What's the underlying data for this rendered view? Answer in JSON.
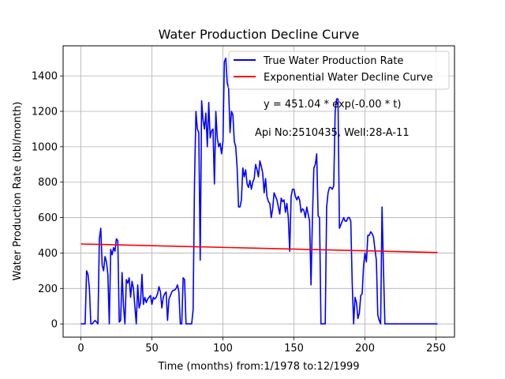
{
  "chart_data": {
    "type": "line",
    "title": "Water Production Decline Curve",
    "xlabel": "Time (months) from:1/1978 to:12/1999",
    "ylabel": "Water Production Rate (bbl/month)",
    "xlim": [
      -12.5,
      263
    ],
    "ylim": [
      -75,
      1570
    ],
    "xticks": [
      0,
      50,
      100,
      150,
      200,
      250
    ],
    "yticks": [
      0,
      200,
      400,
      600,
      800,
      1000,
      1200,
      1400
    ],
    "grid": true,
    "legend_position": "top-right",
    "series": [
      {
        "name": "True Water Production Rate",
        "color": "#0000ff",
        "points": [
          [
            0,
            0
          ],
          [
            1,
            0
          ],
          [
            2,
            0
          ],
          [
            3,
            0
          ],
          [
            4,
            300
          ],
          [
            5,
            280
          ],
          [
            6,
            200
          ],
          [
            7,
            0
          ],
          [
            8,
            0
          ],
          [
            9,
            10
          ],
          [
            10,
            20
          ],
          [
            11,
            10
          ],
          [
            12,
            0
          ],
          [
            13,
            480
          ],
          [
            14,
            540
          ],
          [
            15,
            330
          ],
          [
            16,
            300
          ],
          [
            17,
            380
          ],
          [
            18,
            350
          ],
          [
            19,
            280
          ],
          [
            20,
            0
          ],
          [
            21,
            420
          ],
          [
            22,
            390
          ],
          [
            23,
            430
          ],
          [
            24,
            410
          ],
          [
            25,
            480
          ],
          [
            26,
            470
          ],
          [
            27,
            10
          ],
          [
            28,
            20
          ],
          [
            29,
            290
          ],
          [
            30,
            100
          ],
          [
            31,
            0
          ],
          [
            32,
            250
          ],
          [
            33,
            230
          ],
          [
            34,
            260
          ],
          [
            35,
            150
          ],
          [
            36,
            240
          ],
          [
            37,
            200
          ],
          [
            38,
            100
          ],
          [
            39,
            0
          ],
          [
            40,
            220
          ],
          [
            41,
            90
          ],
          [
            42,
            120
          ],
          [
            43,
            280
          ],
          [
            44,
            110
          ],
          [
            45,
            150
          ],
          [
            46,
            120
          ],
          [
            47,
            140
          ],
          [
            48,
            150
          ],
          [
            49,
            160
          ],
          [
            50,
            110
          ],
          [
            51,
            150
          ],
          [
            52,
            140
          ],
          [
            53,
            150
          ],
          [
            54,
            170
          ],
          [
            55,
            210
          ],
          [
            56,
            180
          ],
          [
            57,
            90
          ],
          [
            58,
            150
          ],
          [
            59,
            170
          ],
          [
            60,
            180
          ],
          [
            61,
            20
          ],
          [
            62,
            140
          ],
          [
            63,
            160
          ],
          [
            64,
            180
          ],
          [
            65,
            190
          ],
          [
            66,
            190
          ],
          [
            67,
            200
          ],
          [
            68,
            220
          ],
          [
            69,
            180
          ],
          [
            70,
            0
          ],
          [
            71,
            0
          ],
          [
            72,
            260
          ],
          [
            73,
            250
          ],
          [
            74,
            0
          ],
          [
            75,
            0
          ],
          [
            76,
            0
          ],
          [
            77,
            0
          ],
          [
            78,
            0
          ],
          [
            79,
            80
          ],
          [
            80,
            800
          ],
          [
            81,
            1200
          ],
          [
            82,
            1100
          ],
          [
            83,
            1080
          ],
          [
            84,
            360
          ],
          [
            85,
            1260
          ],
          [
            86,
            1150
          ],
          [
            87,
            1100
          ],
          [
            88,
            1190
          ],
          [
            89,
            1000
          ],
          [
            90,
            1250
          ],
          [
            91,
            1050
          ],
          [
            92,
            1090
          ],
          [
            93,
            1100
          ],
          [
            94,
            790
          ],
          [
            95,
            1200
          ],
          [
            96,
            1050
          ],
          [
            97,
            1000
          ],
          [
            98,
            1020
          ],
          [
            99,
            960
          ],
          [
            100,
            1030
          ],
          [
            101,
            1480
          ],
          [
            102,
            1500
          ],
          [
            103,
            1360
          ],
          [
            104,
            1330
          ],
          [
            105,
            1080
          ],
          [
            106,
            1200
          ],
          [
            107,
            1180
          ],
          [
            108,
            1030
          ],
          [
            109,
            1000
          ],
          [
            110,
            880
          ],
          [
            111,
            660
          ],
          [
            112,
            660
          ],
          [
            113,
            700
          ],
          [
            114,
            880
          ],
          [
            115,
            830
          ],
          [
            116,
            870
          ],
          [
            117,
            790
          ],
          [
            118,
            770
          ],
          [
            119,
            810
          ],
          [
            120,
            760
          ],
          [
            121,
            800
          ],
          [
            122,
            820
          ],
          [
            123,
            900
          ],
          [
            124,
            870
          ],
          [
            125,
            830
          ],
          [
            126,
            920
          ],
          [
            127,
            890
          ],
          [
            128,
            850
          ],
          [
            129,
            740
          ],
          [
            130,
            820
          ],
          [
            131,
            720
          ],
          [
            132,
            690
          ],
          [
            133,
            680
          ],
          [
            134,
            600
          ],
          [
            135,
            650
          ],
          [
            136,
            740
          ],
          [
            137,
            720
          ],
          [
            138,
            700
          ],
          [
            139,
            660
          ],
          [
            140,
            620
          ],
          [
            141,
            710
          ],
          [
            142,
            690
          ],
          [
            143,
            700
          ],
          [
            144,
            630
          ],
          [
            145,
            680
          ],
          [
            146,
            600
          ],
          [
            147,
            410
          ],
          [
            148,
            720
          ],
          [
            149,
            760
          ],
          [
            150,
            760
          ],
          [
            151,
            720
          ],
          [
            152,
            700
          ],
          [
            153,
            720
          ],
          [
            154,
            700
          ],
          [
            155,
            630
          ],
          [
            156,
            650
          ],
          [
            157,
            640
          ],
          [
            158,
            600
          ],
          [
            159,
            660
          ],
          [
            160,
            620
          ],
          [
            161,
            580
          ],
          [
            162,
            220
          ],
          [
            163,
            600
          ],
          [
            164,
            880
          ],
          [
            165,
            900
          ],
          [
            166,
            960
          ],
          [
            167,
            610
          ],
          [
            168,
            600
          ],
          [
            169,
            0
          ],
          [
            170,
            0
          ],
          [
            171,
            0
          ],
          [
            172,
            0
          ],
          [
            173,
            660
          ],
          [
            174,
            740
          ],
          [
            175,
            770
          ],
          [
            176,
            770
          ],
          [
            177,
            760
          ],
          [
            178,
            780
          ],
          [
            179,
            1200
          ],
          [
            180,
            1270
          ],
          [
            181,
            1270
          ],
          [
            182,
            540
          ],
          [
            183,
            560
          ],
          [
            184,
            580
          ],
          [
            185,
            600
          ],
          [
            186,
            580
          ],
          [
            187,
            580
          ],
          [
            188,
            600
          ],
          [
            189,
            600
          ],
          [
            190,
            580
          ],
          [
            191,
            230
          ],
          [
            192,
            0
          ],
          [
            193,
            150
          ],
          [
            194,
            120
          ],
          [
            195,
            30
          ],
          [
            196,
            60
          ],
          [
            197,
            160
          ],
          [
            198,
            170
          ],
          [
            199,
            330
          ],
          [
            200,
            400
          ],
          [
            201,
            350
          ],
          [
            202,
            500
          ],
          [
            203,
            500
          ],
          [
            204,
            520
          ],
          [
            205,
            510
          ],
          [
            206,
            490
          ],
          [
            207,
            420
          ],
          [
            208,
            360
          ],
          [
            209,
            50
          ],
          [
            210,
            20
          ],
          [
            211,
            0
          ],
          [
            212,
            660
          ],
          [
            213,
            310
          ],
          [
            214,
            0
          ],
          [
            215,
            0
          ],
          [
            216,
            0
          ],
          [
            220,
            0
          ],
          [
            230,
            0
          ],
          [
            240,
            0
          ],
          [
            250,
            0
          ],
          [
            251,
            0
          ]
        ]
      },
      {
        "name": "Exponential Water Decline Curve",
        "color": "#ff0000",
        "points": [
          [
            0,
            451.04
          ],
          [
            251,
            403
          ]
        ]
      }
    ],
    "annotations": {
      "equation": "y = 451.04 * exp(-0.00 * t)",
      "well_info": "Api No:2510435, Well:28-A-11"
    }
  }
}
